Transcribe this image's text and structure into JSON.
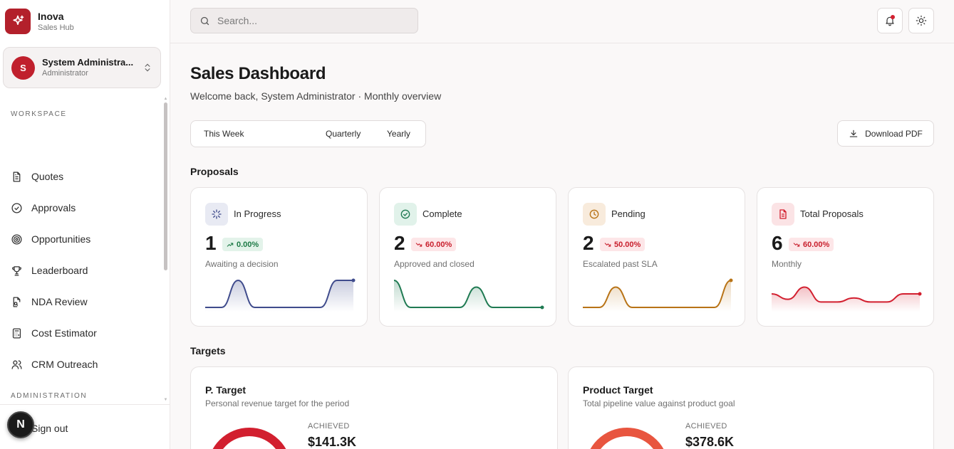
{
  "brand": {
    "name": "Inova",
    "subtitle": "Sales Hub"
  },
  "user": {
    "initial": "S",
    "name": "System Administra...",
    "role": "Administrator"
  },
  "sidebar": {
    "workspace_label": "WORKSPACE",
    "admin_label": "ADMINISTRATION",
    "items": [
      {
        "label": "Quotes",
        "icon": "document-icon"
      },
      {
        "label": "Approvals",
        "icon": "check-circle-icon"
      },
      {
        "label": "Opportunities",
        "icon": "target-icon"
      },
      {
        "label": "Leaderboard",
        "icon": "trophy-icon"
      },
      {
        "label": "NDA Review",
        "icon": "file-search-icon"
      },
      {
        "label": "Cost Estimator",
        "icon": "calculator-icon"
      },
      {
        "label": "CRM Outreach",
        "icon": "users-icon"
      }
    ],
    "signout": "Sign out",
    "fab_letter": "N"
  },
  "search": {
    "placeholder": "Search..."
  },
  "header": {
    "title": "Sales Dashboard",
    "subtitle": "Welcome back, System Administrator · Monthly overview"
  },
  "period": {
    "options": [
      "This Week",
      "Quarterly",
      "Yearly"
    ]
  },
  "download_label": "Download PDF",
  "proposals": {
    "heading": "Proposals",
    "cards": [
      {
        "title": "In Progress",
        "value": "1",
        "change": "0.00%",
        "trend": "up",
        "desc": "Awaiting a decision",
        "icon": "loader-icon",
        "color": "#3f4b8c",
        "icon_bg": "#e8eaf3",
        "badge_bg": "#e3f3ea",
        "badge_color": "#1d7a46",
        "series": [
          0,
          0,
          1,
          0,
          0,
          0,
          0,
          0,
          1,
          1
        ]
      },
      {
        "title": "Complete",
        "value": "2",
        "change": "60.00%",
        "trend": "down",
        "desc": "Approved and closed",
        "icon": "check-circle-icon",
        "color": "#1f7a52",
        "icon_bg": "#e1f2ea",
        "badge_bg": "#fde6e8",
        "badge_color": "#c81e2c",
        "series": [
          1,
          0,
          0,
          0,
          0,
          0.75,
          0,
          0,
          0,
          0
        ]
      },
      {
        "title": "Pending",
        "value": "2",
        "change": "50.00%",
        "trend": "down",
        "desc": "Escalated past SLA",
        "icon": "clock-icon",
        "color": "#b87316",
        "icon_bg": "#f8ebdc",
        "badge_bg": "#fde6e8",
        "badge_color": "#c81e2c",
        "series": [
          0,
          0,
          0.75,
          0,
          0,
          0,
          0,
          0,
          0,
          1
        ]
      },
      {
        "title": "Total Proposals",
        "value": "6",
        "change": "60.00%",
        "trend": "down",
        "desc": "Monthly",
        "icon": "file-icon",
        "color": "#d21f2f",
        "icon_bg": "#fbe3e5",
        "badge_bg": "#fde6e8",
        "badge_color": "#c81e2c",
        "series": [
          0.5,
          0.3,
          0.75,
          0.2,
          0.2,
          0.35,
          0.2,
          0.2,
          0.5,
          0.5
        ]
      }
    ]
  },
  "targets": {
    "heading": "Targets",
    "cards": [
      {
        "title": "P. Target",
        "subtitle": "Personal revenue target for the period",
        "achieved_label": "ACHIEVED",
        "achieved_value": "$141.3K",
        "color": "#d21f2f"
      },
      {
        "title": "Product Target",
        "subtitle": "Total pipeline value against product goal",
        "achieved_label": "ACHIEVED",
        "achieved_value": "$378.6K",
        "color": "#e8553f"
      }
    ]
  }
}
